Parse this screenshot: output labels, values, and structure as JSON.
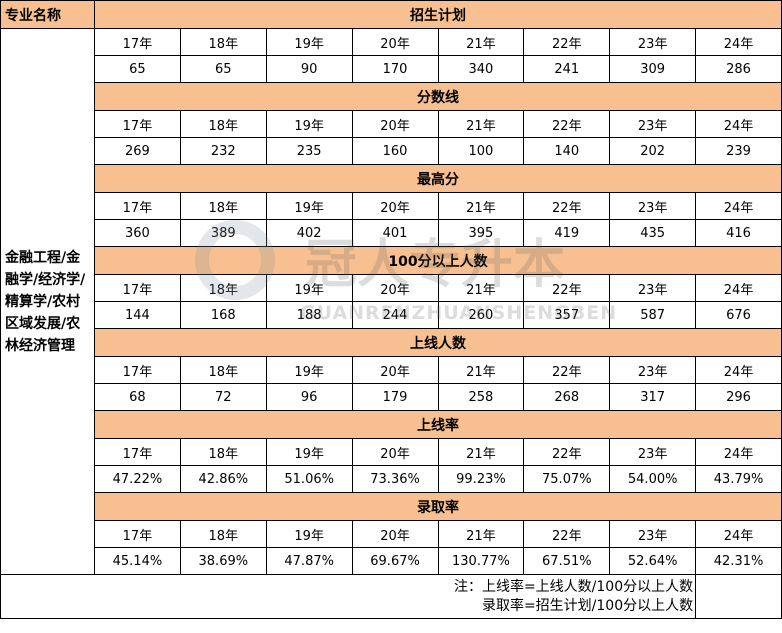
{
  "header": {
    "name_label": "专业名称"
  },
  "major": "金融工程/金融学/经济学/精算学/农村区域发展/农林经济管理",
  "years": [
    "17年",
    "18年",
    "19年",
    "20年",
    "21年",
    "22年",
    "23年",
    "24年"
  ],
  "sections": [
    {
      "title": "招生计划",
      "values": [
        "65",
        "65",
        "90",
        "170",
        "340",
        "241",
        "309",
        "286"
      ]
    },
    {
      "title": "分数线",
      "values": [
        "269",
        "232",
        "235",
        "160",
        "100",
        "140",
        "202",
        "239"
      ]
    },
    {
      "title": "最高分",
      "values": [
        "360",
        "389",
        "402",
        "401",
        "395",
        "419",
        "435",
        "416"
      ]
    },
    {
      "title": "100分以上人数",
      "values": [
        "144",
        "168",
        "188",
        "244",
        "260",
        "357",
        "587",
        "676"
      ]
    },
    {
      "title": "上线人数",
      "values": [
        "68",
        "72",
        "96",
        "179",
        "258",
        "268",
        "317",
        "296"
      ]
    },
    {
      "title": "上线率",
      "values": [
        "47.22%",
        "42.86%",
        "51.06%",
        "73.36%",
        "99.23%",
        "75.07%",
        "54.00%",
        "43.79%"
      ]
    },
    {
      "title": "录取率",
      "values": [
        "45.14%",
        "38.69%",
        "47.87%",
        "69.67%",
        "130.77%",
        "67.51%",
        "52.64%",
        "42.31%"
      ]
    }
  ],
  "notes": [
    "注：上线率=上线人数/100分以上人数",
    "录取率=招生计划/100分以上人数"
  ],
  "watermark": {
    "cn": "冠人专升本",
    "en": "GUANRENZHUANSHENGBEN"
  },
  "colors": {
    "header_bg": "#f8c090"
  }
}
